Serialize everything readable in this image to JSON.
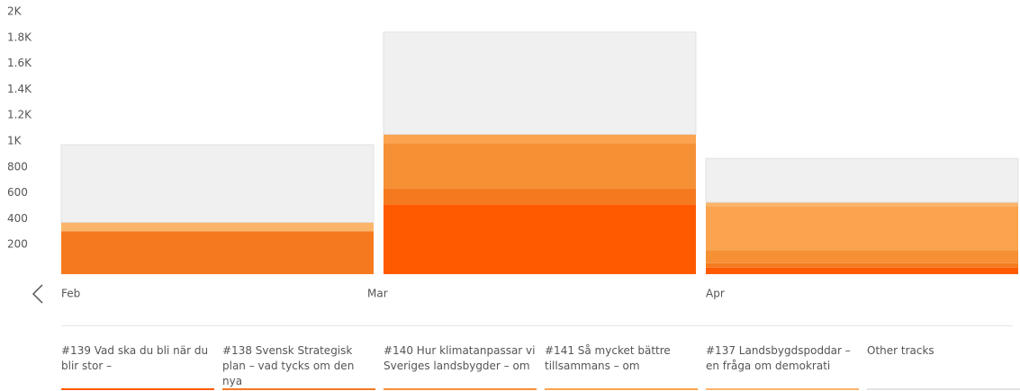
{
  "chart_data": {
    "type": "stacked_bar",
    "categories": [
      "Feb",
      "Mar",
      "Apr"
    ],
    "series": [
      {
        "name": "#139 Vad ska du bli när du blir stor –",
        "color": "#ff5a00",
        "values": [
          0,
          540,
          50
        ]
      },
      {
        "name": "#138 Svensk Strategisk plan – vad tycks om den nya",
        "color": "#f57a1f",
        "values": [
          330,
          120,
          35
        ]
      },
      {
        "name": "#140 Hur klimatanpassar vi Sveriges landsbygder – om",
        "color": "#f69035",
        "values": [
          0,
          350,
          100
        ]
      },
      {
        "name": "#141 Så mycket bättre tillsammans – om",
        "color": "#fba34e",
        "values": [
          0,
          70,
          340
        ]
      },
      {
        "name": "#137 Landsbygdspoddar – en fråga om demokrati",
        "color": "#fbb56a",
        "values": [
          70,
          0,
          30
        ]
      },
      {
        "name": "Other tracks",
        "color": "#f0f0f0",
        "values": [
          600,
          790,
          340
        ]
      }
    ],
    "ylim": [
      0,
      2000
    ],
    "yticks": [
      200,
      400,
      600,
      800,
      {
        "value": 1000,
        "label": "1K"
      },
      {
        "value": 1200,
        "label": "1.2K"
      },
      {
        "value": 1400,
        "label": "1.4K"
      },
      {
        "value": 1600,
        "label": "1.6K"
      },
      {
        "value": 1800,
        "label": "1.8K"
      },
      {
        "value": 2000,
        "label": "2K"
      }
    ]
  }
}
